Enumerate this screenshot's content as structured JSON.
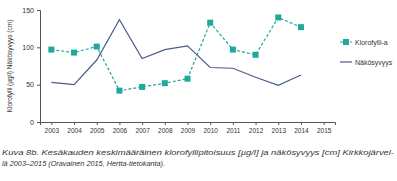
{
  "chart_data": {
    "type": "line",
    "y_label": "Klorofylli (µg/l) Näkösyvyys (cm)",
    "caption": [
      "Kuva 8b. Kesäkauden keskimääräinen klorofyllipitoisuus [µg/l] ja näkösyvyys [cm] Kirkkojärvel-",
      "lä 2003–2015 (Oravainen 2015, Hertta-tietokanta)."
    ],
    "categories": [
      "2003",
      "2004",
      "2005",
      "2006",
      "2007",
      "2008",
      "2009",
      "2010",
      "2011",
      "2012",
      "2013",
      "2014",
      "2015"
    ],
    "series": [
      {
        "name": "Klorofylli-a",
        "color": "#1fa89c",
        "marker": "square",
        "line_style": "dashed",
        "values": [
          97,
          93,
          101,
          42,
          47,
          52,
          58,
          133,
          97,
          90,
          140,
          127,
          null
        ]
      },
      {
        "name": "Näkösyvyys",
        "color": "#4b5b8e",
        "marker": "none",
        "line_style": "solid",
        "values": [
          53,
          50,
          83,
          137,
          85,
          97,
          102,
          73,
          72,
          60,
          49,
          63,
          null
        ]
      }
    ],
    "ylim": [
      0,
      150
    ],
    "yticks": [
      0,
      50,
      100,
      150
    ],
    "grid": false,
    "legend": "right"
  }
}
